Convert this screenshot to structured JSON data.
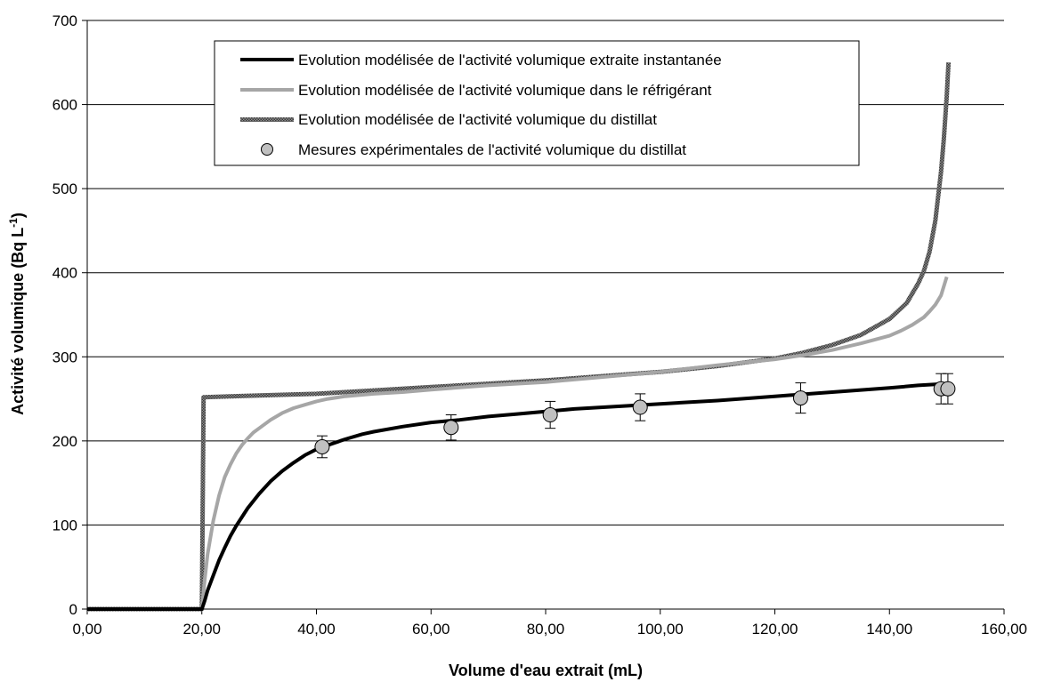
{
  "chart_data": {
    "type": "line",
    "title": "",
    "xlabel": "Volume d'eau extrait (mL)",
    "ylabel": "Activité volumique (Bq L",
    "ylabel_sup": "-1",
    "ylabel_close": ")",
    "xlim": [
      0,
      160
    ],
    "ylim": [
      0,
      700
    ],
    "x_ticks": [
      0,
      20,
      40,
      60,
      80,
      100,
      120,
      140,
      160
    ],
    "x_tick_labels": [
      "0,00",
      "20,00",
      "40,00",
      "60,00",
      "80,00",
      "100,00",
      "120,00",
      "140,00",
      "160,00"
    ],
    "y_ticks": [
      0,
      100,
      200,
      300,
      400,
      500,
      600,
      700
    ],
    "y_tick_labels": [
      "0",
      "100",
      "200",
      "300",
      "400",
      "500",
      "600",
      "700"
    ],
    "grid": "horizontal",
    "legend_position": "top-center",
    "series": [
      {
        "name": "Evolution modélisée de l'activité volumique extraite instantanée",
        "color": "#000000",
        "style": "solid",
        "x": [
          0,
          20,
          20.5,
          21,
          22,
          23,
          24,
          25,
          26,
          28,
          30,
          32,
          34,
          36,
          38,
          40,
          42,
          45,
          48,
          50,
          55,
          60,
          65,
          70,
          75,
          80,
          85,
          90,
          95,
          100,
          110,
          120,
          130,
          140,
          145,
          150
        ],
        "y": [
          0,
          0,
          10,
          22,
          40,
          58,
          73,
          87,
          99,
          120,
          137,
          152,
          164,
          174,
          183,
          190,
          195,
          202,
          208,
          211,
          217,
          222,
          225,
          229,
          232,
          235,
          238,
          240,
          242,
          244,
          248,
          253,
          258,
          263,
          266,
          268
        ]
      },
      {
        "name": "Evolution modélisée de l'activité volumique dans le réfrigérant",
        "color": "#a6a6a6",
        "style": "solid",
        "x": [
          20,
          20.5,
          21,
          22,
          23,
          24,
          25,
          26,
          27,
          28,
          29,
          30,
          32,
          34,
          36,
          38,
          40,
          42,
          45,
          50,
          55,
          60,
          70,
          80,
          90,
          100,
          110,
          120,
          125,
          130,
          135,
          140,
          142,
          144,
          146,
          147,
          148,
          149,
          150
        ],
        "y": [
          0,
          35,
          65,
          105,
          135,
          157,
          172,
          185,
          195,
          203,
          210,
          215,
          225,
          233,
          239,
          243,
          247,
          250,
          253,
          256,
          258,
          261,
          266,
          270,
          276,
          282,
          290,
          297,
          302,
          308,
          316,
          325,
          331,
          338,
          347,
          354,
          362,
          373,
          395
        ]
      },
      {
        "name": "Evolution modélisée de l'activité volumique du distillat",
        "color": "#555555",
        "style": "hatched",
        "x": [
          0,
          20,
          20.3,
          25,
          30,
          40,
          50,
          60,
          70,
          80,
          90,
          100,
          110,
          120,
          125,
          130,
          135,
          140,
          143,
          145,
          146,
          147,
          148,
          149,
          149.5,
          150,
          150.3
        ],
        "y": [
          0,
          0,
          252,
          253,
          254,
          256,
          260,
          264,
          268,
          272,
          277,
          282,
          289,
          298,
          305,
          314,
          326,
          345,
          364,
          387,
          402,
          425,
          462,
          520,
          560,
          610,
          650
        ]
      },
      {
        "name": "Mesures expérimentales de l'activité volumique du distillat",
        "type": "scatter",
        "color": "#c0c0c0",
        "x": [
          41,
          63.5,
          80.8,
          96.5,
          124.5,
          149,
          150.2
        ],
        "y": [
          193,
          216,
          231,
          240,
          251,
          262,
          262
        ],
        "error": [
          13,
          15,
          16,
          16,
          18,
          18,
          18
        ]
      }
    ]
  }
}
